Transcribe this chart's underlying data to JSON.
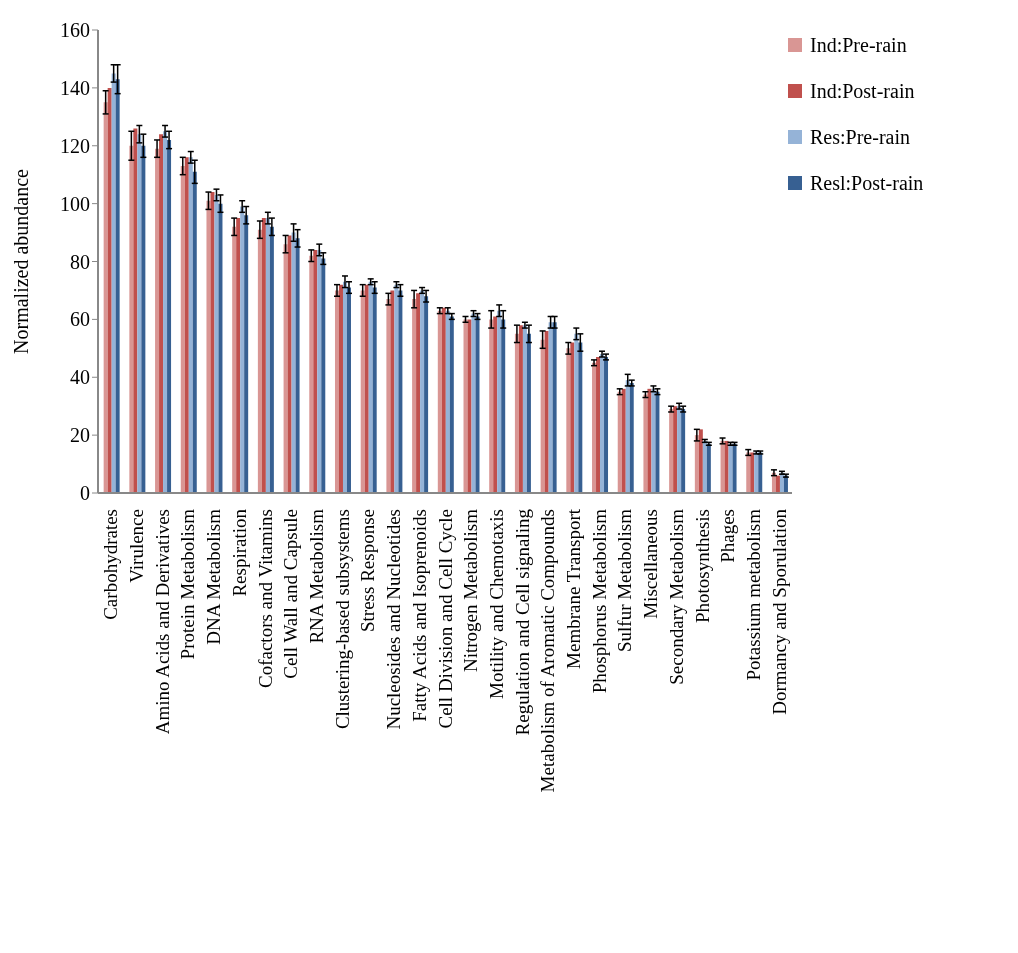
{
  "chart_data": {
    "type": "bar",
    "ylabel": "Normalized abundance",
    "categories": [
      "Carbohydrates",
      "Virulence",
      "Amino Acids and Derivatives",
      "Protein Metabolism",
      "DNA Metabolism",
      "Respiration",
      "Cofactors and Vitamins",
      "Cell Wall and Capsule",
      "RNA Metabolism",
      "Clustering-based subsystems",
      "Stress Response",
      "Nucleosides and Nucleotides",
      "Fatty Acids and Isoprenoids",
      "Cell Division and Cell Cycle",
      "Nitrogen Metabolism",
      "Motility and Chemotaxis",
      "Regulation and Cell signaling",
      "Metabolism of Aromatic Compounds",
      "Membrane Transport",
      "Phosphorus Metabolism",
      "Sulfur Metabolism",
      "Miscellaneous",
      "Secondary Metabolism",
      "Photosynthesis",
      "Phages",
      "Potassium metabolism",
      "Dormancy and Sporulation"
    ],
    "series": [
      {
        "name": "Ind:Pre-rain",
        "color": "#d99694",
        "values": [
          135,
          120,
          119,
          113,
          101,
          92,
          91,
          86,
          82,
          70,
          70,
          67,
          67,
          63,
          60,
          60,
          55,
          53,
          50,
          45,
          35,
          34,
          29,
          20,
          18,
          14,
          7
        ],
        "errors": [
          4,
          5,
          3,
          3,
          3,
          3,
          3,
          3,
          2,
          2,
          2,
          2,
          3,
          1,
          1,
          3,
          3,
          3,
          2,
          1,
          1,
          1,
          1,
          2,
          1,
          1,
          1
        ]
      },
      {
        "name": "Ind:Post-rain",
        "color": "#c0504d",
        "values": [
          140,
          126,
          124,
          116,
          104,
          95,
          95,
          89,
          84,
          72,
          72,
          70,
          69,
          64,
          60,
          61,
          58,
          56,
          52,
          47,
          36,
          36,
          30,
          22,
          18,
          14,
          6
        ]
      },
      {
        "name": "Res:Pre-rain",
        "color": "#95b3d7",
        "values": [
          145,
          124,
          125,
          116,
          103,
          99,
          95,
          90,
          84,
          73,
          73,
          72,
          70,
          63,
          62,
          63,
          58,
          59,
          55,
          48,
          39,
          36,
          30,
          18,
          17,
          14,
          7
        ],
        "errors": [
          3,
          3,
          2,
          2,
          2,
          2,
          2,
          3,
          2,
          2,
          1,
          1,
          1,
          1,
          1,
          2,
          1,
          2,
          2,
          1,
          2,
          1,
          1,
          0.5,
          0.5,
          0.5,
          0.5
        ]
      },
      {
        "name": "Resl:Post-rain",
        "color": "#376092",
        "values": [
          143,
          120,
          122,
          111,
          100,
          96,
          92,
          88,
          81,
          71,
          71,
          70,
          68,
          61,
          61,
          60,
          55,
          59,
          52,
          47,
          38,
          35,
          29,
          17,
          17,
          14,
          6
        ],
        "errors": [
          5,
          4,
          3,
          4,
          3,
          3,
          3,
          3,
          2,
          2,
          2,
          2,
          2,
          1,
          1,
          3,
          3,
          2,
          3,
          1,
          1,
          1,
          1,
          0.5,
          0.5,
          0.5,
          0.5
        ]
      }
    ],
    "ylim": [
      0,
      160
    ],
    "yticks": [
      0,
      20,
      40,
      60,
      80,
      100,
      120,
      140,
      160
    ],
    "legend": "top right"
  }
}
